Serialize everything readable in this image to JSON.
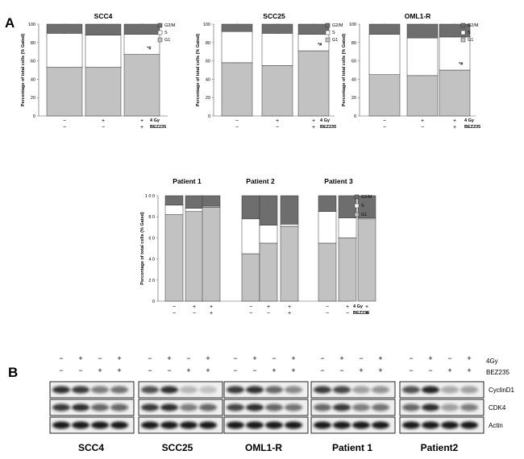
{
  "panels": {
    "a": "A",
    "b": "B"
  },
  "palette": {
    "g2m": "#6e6e6e",
    "s": "#ffffff",
    "g1": "#c2c2c2",
    "stroke": "#333333"
  },
  "legend": [
    "G2/M",
    "S",
    "G1"
  ],
  "treatments": {
    "row1": "4 Gy",
    "row2": "BEZ235"
  },
  "chart_data": [
    {
      "type": "bar",
      "stacked": true,
      "title": "SCC4",
      "ylabel": "Percentage of total cells (% Gated)",
      "ytick_labels": [
        "0",
        "20",
        "40",
        "60",
        "80",
        "100"
      ],
      "ylim": [
        0,
        100
      ],
      "row1": [
        "−",
        "+",
        "+"
      ],
      "row2": [
        "−",
        "−",
        "+"
      ],
      "series": [
        {
          "name": "G1",
          "values": [
            53,
            53,
            67
          ]
        },
        {
          "name": "S",
          "values": [
            37,
            35,
            22
          ]
        },
        {
          "name": "G2/M",
          "values": [
            10,
            12,
            11
          ]
        }
      ],
      "annotations": [
        "",
        "",
        "*#"
      ]
    },
    {
      "type": "bar",
      "stacked": true,
      "title": "SCC25",
      "ylabel": "Percentage of total cells (% Gated)",
      "ytick_labels": [
        "0",
        "20",
        "40",
        "60",
        "80",
        "100"
      ],
      "ylim": [
        0,
        100
      ],
      "row1": [
        "−",
        "+",
        "+"
      ],
      "row2": [
        "−",
        "−",
        "+"
      ],
      "series": [
        {
          "name": "G1",
          "values": [
            58,
            55,
            71
          ]
        },
        {
          "name": "S",
          "values": [
            34,
            35,
            18
          ]
        },
        {
          "name": "G2/M",
          "values": [
            8,
            10,
            11
          ]
        }
      ],
      "annotations": [
        "",
        "",
        "*#"
      ]
    },
    {
      "type": "bar",
      "stacked": true,
      "title": "OML1-R",
      "ylabel": "Percentage of total cells (% Gated)",
      "ytick_labels": [
        "0",
        "20",
        "40",
        "60",
        "80",
        "100"
      ],
      "ylim": [
        0,
        100
      ],
      "row1": [
        "−",
        "+",
        "+"
      ],
      "row2": [
        "−",
        "−",
        "+"
      ],
      "series": [
        {
          "name": "G1",
          "values": [
            45,
            44,
            50
          ]
        },
        {
          "name": "S",
          "values": [
            44,
            41,
            36
          ]
        },
        {
          "name": "G2/M",
          "values": [
            11,
            15,
            14
          ]
        }
      ],
      "annotations": [
        "",
        "",
        "*#"
      ]
    },
    {
      "type": "bar",
      "stacked": true,
      "grouped": true,
      "group_titles": [
        "Patient 1",
        "Patient 2",
        "Patient 3"
      ],
      "ylabel": "Percentage of total cells (% Gated)",
      "ytick_labels": [
        "0",
        "2 0",
        "4 0",
        "6 0",
        "8 0",
        "1 0 0"
      ],
      "ylim": [
        0,
        100
      ],
      "row1": [
        "−",
        "+",
        "+",
        "−",
        "+",
        "+",
        "−",
        "+",
        "+"
      ],
      "row2": [
        "−",
        "−",
        "+",
        "−",
        "−",
        "+",
        "−",
        "−",
        "+"
      ],
      "series": [
        {
          "name": "G1",
          "values": [
            82,
            85,
            89,
            45,
            55,
            71,
            55,
            60,
            78
          ]
        },
        {
          "name": "S",
          "values": [
            9,
            3,
            1,
            33,
            17,
            2,
            30,
            19,
            1
          ]
        },
        {
          "name": "G2/M",
          "values": [
            9,
            12,
            10,
            22,
            28,
            27,
            15,
            21,
            21
          ]
        }
      ]
    }
  ],
  "western": {
    "treat_labels": [
      "4Gy",
      "BEZ235"
    ],
    "row1": [
      "−",
      "+",
      "−",
      "+"
    ],
    "row2": [
      "−",
      "−",
      "+",
      "+"
    ],
    "proteins": [
      "CyclinD1",
      "CDK4",
      "Actin"
    ],
    "cells": [
      "SCC4",
      "SCC25",
      "OML1-R",
      "Patient 1",
      "Patient2"
    ]
  }
}
